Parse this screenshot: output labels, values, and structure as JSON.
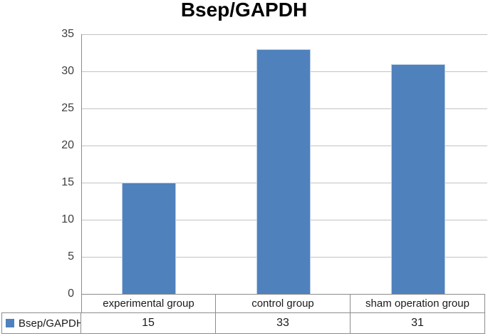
{
  "chart_data": {
    "type": "bar",
    "title": "Bsep/GAPDH",
    "categories": [
      "experimental group",
      "control group",
      "sham operation group"
    ],
    "series": [
      {
        "name": "Bsep/GAPDH",
        "values": [
          15,
          33,
          31
        ]
      }
    ],
    "xlabel": "",
    "ylabel": "",
    "ylim": [
      0,
      35
    ],
    "yticks": [
      0,
      5,
      10,
      15,
      20,
      25,
      30,
      35
    ],
    "grid": true,
    "legend_position": "bottom-left-data-table",
    "data_table_values": [
      "15",
      "33",
      "31"
    ]
  },
  "colors": {
    "bar": "#4f81bd",
    "bar_border": "#b9cde5",
    "gridline": "#c3c3c3",
    "axis": "#8c8c8c",
    "table_border": "#8c8c8c",
    "text": "#3f3f3f",
    "title_text": "#000000"
  }
}
